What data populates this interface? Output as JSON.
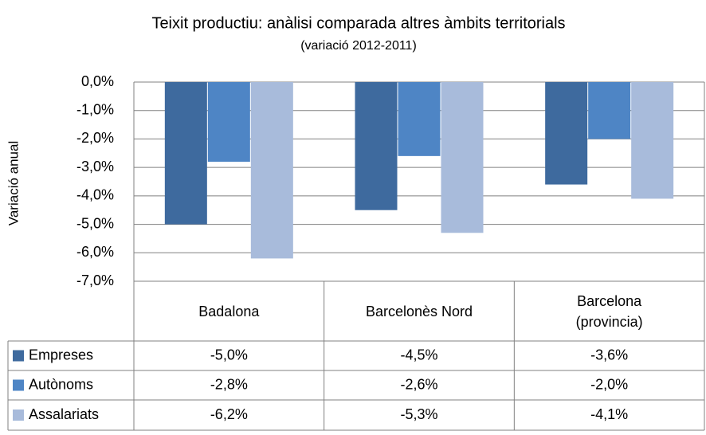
{
  "chart_data": {
    "type": "bar",
    "title": "Teixit productiu: anàlisi comparada altres àmbits territorials",
    "subtitle": "(variació 2012-2011)",
    "y_label": "Variació anual",
    "categories": [
      "Badalona",
      "Barcelonès Nord",
      "Barcelona (provincia)"
    ],
    "series": [
      {
        "name": "Empreses",
        "color": "#3e6a9e",
        "values": [
          -5.0,
          -4.5,
          -3.6
        ],
        "value_labels": [
          "-5,0%",
          "-4,5%",
          "-3,6%"
        ]
      },
      {
        "name": "Autònoms",
        "color": "#4e85c5",
        "values": [
          -2.8,
          -2.6,
          -2.0
        ],
        "value_labels": [
          "-2,8%",
          "-2,6%",
          "-2,0%"
        ]
      },
      {
        "name": "Assalariats",
        "color": "#a8bbdb",
        "values": [
          -6.2,
          -5.3,
          -4.1
        ],
        "value_labels": [
          "-6,2%",
          "-5,3%",
          "-4,1%"
        ]
      }
    ],
    "ylim": [
      -7,
      0
    ],
    "yticks": [
      {
        "value": 0,
        "label": "0,0%"
      },
      {
        "value": -1,
        "label": "-1,0%"
      },
      {
        "value": -2,
        "label": "-2,0%"
      },
      {
        "value": -3,
        "label": "-3,0%"
      },
      {
        "value": -4,
        "label": "-4,0%"
      },
      {
        "value": -5,
        "label": "-5,0%"
      },
      {
        "value": -6,
        "label": "-6,0%"
      },
      {
        "value": -7,
        "label": "-7,0%"
      }
    ],
    "grid": true
  }
}
